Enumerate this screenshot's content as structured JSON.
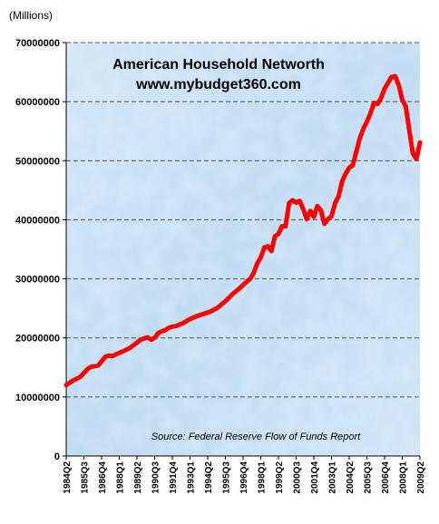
{
  "chart_data": {
    "type": "line",
    "title": "American Household Networth",
    "subtitle": "www.mybudget360.com",
    "unit_label": "(Millions)",
    "source": "Source:  Federal Reserve  Flow of Funds Report",
    "xlabel": "",
    "ylabel": "",
    "ylim": [
      0,
      70000000
    ],
    "y_ticks": [
      "0",
      "10000000",
      "20000000",
      "30000000",
      "40000000",
      "50000000",
      "60000000",
      "70000000"
    ],
    "x_tick_labels": [
      "1984Q2",
      "1985Q3",
      "1986Q4",
      "1988Q1",
      "1989Q2",
      "1990Q3",
      "1991Q4",
      "1993Q1",
      "1994Q2",
      "1995Q3",
      "1996Q4",
      "1998Q1",
      "1999Q2",
      "2000Q3",
      "2001Q4",
      "2003Q1",
      "2004Q2",
      "2005Q3",
      "2006Q4",
      "2008Q1",
      "2009Q2"
    ],
    "grid": true,
    "line_color": "#ff0000",
    "series": [
      {
        "x": [
          1984.25,
          1984.75,
          1985.25,
          1985.75,
          1986.0,
          1986.5,
          1986.75,
          1987.0,
          1987.25,
          1987.5,
          1987.75,
          1988.25,
          1988.75,
          1989.25,
          1989.5,
          1989.75,
          1990.0,
          1990.25,
          1990.5,
          1990.75,
          1991.0,
          1991.25,
          1991.5,
          1991.75,
          1992.0,
          1992.5,
          1993.0,
          1993.5,
          1994.0,
          1994.5,
          1995.0,
          1995.5,
          1996.0,
          1996.5,
          1997.0,
          1997.25,
          1997.5,
          1997.75,
          1998.0,
          1998.25,
          1998.5,
          1998.75,
          1999.0,
          1999.25,
          1999.5,
          1999.75,
          2000.0,
          2000.25,
          2000.5,
          2000.75,
          2001.0,
          2001.25,
          2001.5,
          2001.75,
          2002.0,
          2002.25,
          2002.5,
          2002.75,
          2003.0,
          2003.25,
          2003.5,
          2003.75,
          2004.0,
          2004.25,
          2004.5,
          2004.75,
          2005.0,
          2005.25,
          2005.5,
          2005.75,
          2006.0,
          2006.25,
          2006.5,
          2006.75,
          2007.0,
          2007.25,
          2007.5,
          2007.75,
          2008.0,
          2008.25,
          2008.5,
          2008.75,
          2009.0,
          2009.25
        ],
        "values": [
          12000000,
          12800000,
          13400000,
          14700000,
          15100000,
          15300000,
          16000000,
          16800000,
          17000000,
          16900000,
          17200000,
          17700000,
          18300000,
          19200000,
          19700000,
          19900000,
          20100000,
          19700000,
          20000000,
          20800000,
          21100000,
          21300000,
          21700000,
          21900000,
          22000000,
          22500000,
          23200000,
          23700000,
          24100000,
          24500000,
          25200000,
          26200000,
          27400000,
          28400000,
          29500000,
          30000000,
          31000000,
          32600000,
          33600000,
          35300000,
          35500000,
          34700000,
          37200000,
          37600000,
          38900000,
          38900000,
          42800000,
          43300000,
          42900000,
          43200000,
          41800000,
          40100000,
          41500000,
          40500000,
          42300000,
          41600000,
          39300000,
          40100000,
          40600000,
          42800000,
          44000000,
          46500000,
          47800000,
          48800000,
          49200000,
          51500000,
          53800000,
          55400000,
          56600000,
          58000000,
          59800000,
          59600000,
          60600000,
          62200000,
          63200000,
          64200000,
          64300000,
          62800000,
          60300000,
          59200000,
          55100000,
          51200000,
          50300000,
          53100000
        ]
      }
    ]
  }
}
